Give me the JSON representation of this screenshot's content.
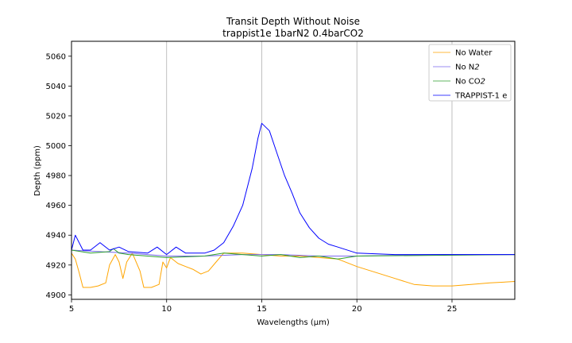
{
  "chart_data": {
    "type": "line",
    "title": "Transit Depth Without Noise",
    "subtitle": "trappist1e 1barN2 0.4barCO2",
    "xlabel": "Wavelengths (μm)",
    "ylabel": "Depth (ppm)",
    "xlim": [
      5,
      28.3
    ],
    "ylim": [
      4897,
      5070
    ],
    "x_ticks": [
      5,
      10,
      15,
      20,
      25
    ],
    "y_ticks": [
      4900,
      4920,
      4940,
      4960,
      4980,
      5000,
      5020,
      5040,
      5060
    ],
    "grid": "vertical",
    "legend_position": "top-right",
    "series": [
      {
        "name": "No Water",
        "color": "#ffa500",
        "points": [
          [
            5.0,
            4928
          ],
          [
            5.2,
            4924
          ],
          [
            5.4,
            4915
          ],
          [
            5.6,
            4905
          ],
          [
            6.0,
            4905
          ],
          [
            6.4,
            4906
          ],
          [
            6.8,
            4908
          ],
          [
            7.0,
            4920
          ],
          [
            7.3,
            4927
          ],
          [
            7.5,
            4922
          ],
          [
            7.7,
            4911
          ],
          [
            7.9,
            4922
          ],
          [
            8.2,
            4928
          ],
          [
            8.6,
            4916
          ],
          [
            8.8,
            4905
          ],
          [
            9.2,
            4905
          ],
          [
            9.6,
            4907
          ],
          [
            9.8,
            4922
          ],
          [
            10.0,
            4918
          ],
          [
            10.2,
            4925
          ],
          [
            10.6,
            4921
          ],
          [
            11.0,
            4919
          ],
          [
            11.4,
            4917
          ],
          [
            11.8,
            4914
          ],
          [
            12.2,
            4916
          ],
          [
            12.6,
            4922
          ],
          [
            13.0,
            4928
          ],
          [
            14.0,
            4928
          ],
          [
            15.0,
            4927
          ],
          [
            16.0,
            4926
          ],
          [
            17.0,
            4926
          ],
          [
            18.0,
            4925
          ],
          [
            19.0,
            4924
          ],
          [
            20.0,
            4919
          ],
          [
            21.0,
            4915
          ],
          [
            22.0,
            4911
          ],
          [
            23.0,
            4907
          ],
          [
            24.0,
            4906
          ],
          [
            25.0,
            4906
          ],
          [
            26.0,
            4907
          ],
          [
            27.0,
            4908
          ],
          [
            28.3,
            4909
          ]
        ]
      },
      {
        "name": "No N_2",
        "color": "#7b68ee",
        "points": [
          [
            5.0,
            4930
          ],
          [
            8.0,
            4928
          ],
          [
            10.0,
            4926
          ],
          [
            12.0,
            4926
          ],
          [
            14.0,
            4927
          ],
          [
            16.0,
            4927
          ],
          [
            18.0,
            4926
          ],
          [
            20.0,
            4926
          ],
          [
            24.0,
            4927
          ],
          [
            28.3,
            4927
          ]
        ]
      },
      {
        "name": "No CO_2",
        "color": "#2ca02c",
        "points": [
          [
            5.0,
            4930
          ],
          [
            6.0,
            4928
          ],
          [
            7.0,
            4929
          ],
          [
            7.2,
            4931
          ],
          [
            7.5,
            4928
          ],
          [
            8.0,
            4927
          ],
          [
            10.0,
            4925
          ],
          [
            12.0,
            4926
          ],
          [
            13.0,
            4928
          ],
          [
            14.0,
            4927
          ],
          [
            15.0,
            4926
          ],
          [
            16.0,
            4927
          ],
          [
            17.0,
            4925
          ],
          [
            18.0,
            4926
          ],
          [
            19.0,
            4924
          ],
          [
            20.0,
            4926
          ],
          [
            28.3,
            4927
          ]
        ]
      },
      {
        "name": "TRAPPIST-1 e",
        "color": "#0000ff",
        "points": [
          [
            5.0,
            4930
          ],
          [
            5.2,
            4940
          ],
          [
            5.6,
            4930
          ],
          [
            6.0,
            4930
          ],
          [
            6.5,
            4935
          ],
          [
            7.0,
            4930
          ],
          [
            7.5,
            4932
          ],
          [
            8.0,
            4929
          ],
          [
            9.0,
            4928
          ],
          [
            9.5,
            4932
          ],
          [
            10.0,
            4927
          ],
          [
            10.5,
            4932
          ],
          [
            11.0,
            4928
          ],
          [
            12.0,
            4928
          ],
          [
            12.5,
            4930
          ],
          [
            13.0,
            4935
          ],
          [
            13.5,
            4946
          ],
          [
            14.0,
            4960
          ],
          [
            14.5,
            4985
          ],
          [
            14.8,
            5005
          ],
          [
            15.0,
            5015
          ],
          [
            15.4,
            5010
          ],
          [
            15.8,
            4995
          ],
          [
            16.2,
            4980
          ],
          [
            16.6,
            4968
          ],
          [
            17.0,
            4955
          ],
          [
            17.5,
            4945
          ],
          [
            18.0,
            4938
          ],
          [
            18.5,
            4934
          ],
          [
            19.0,
            4932
          ],
          [
            20.0,
            4928
          ],
          [
            22.0,
            4927
          ],
          [
            24.0,
            4927
          ],
          [
            26.0,
            4927
          ],
          [
            28.3,
            4927
          ]
        ]
      }
    ]
  }
}
